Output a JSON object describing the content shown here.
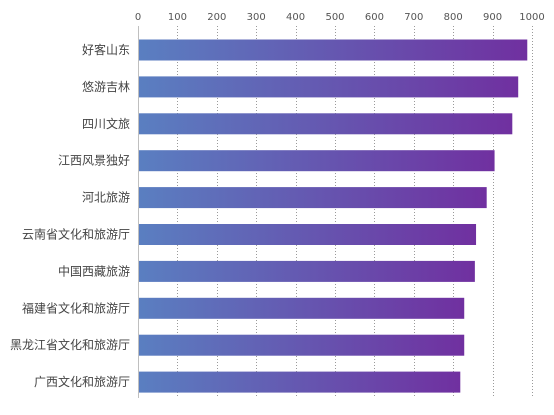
{
  "chart_data": {
    "type": "bar",
    "orientation": "horizontal",
    "title": "",
    "xlabel": "",
    "ylabel": "",
    "xlim": [
      0,
      1000
    ],
    "x_ticks": [
      0,
      100,
      200,
      300,
      400,
      500,
      600,
      700,
      800,
      900,
      1000
    ],
    "x_axis_position": "top",
    "grid": true,
    "legend": "none",
    "categories": [
      "好客山东",
      "悠游吉林",
      "四川文旅",
      "江西风景独好",
      "河北旅游",
      "云南省文化和旅游厅",
      "中国西藏旅游",
      "福建省文化和旅游厅",
      "黑龙江省文化和旅游厅",
      "广西文化和旅游厅"
    ],
    "values": [
      988,
      965,
      950,
      905,
      885,
      858,
      855,
      828,
      828,
      818
    ],
    "colors": {
      "bar_start": "#5a7fc1",
      "bar_end": "#7030a0"
    }
  }
}
